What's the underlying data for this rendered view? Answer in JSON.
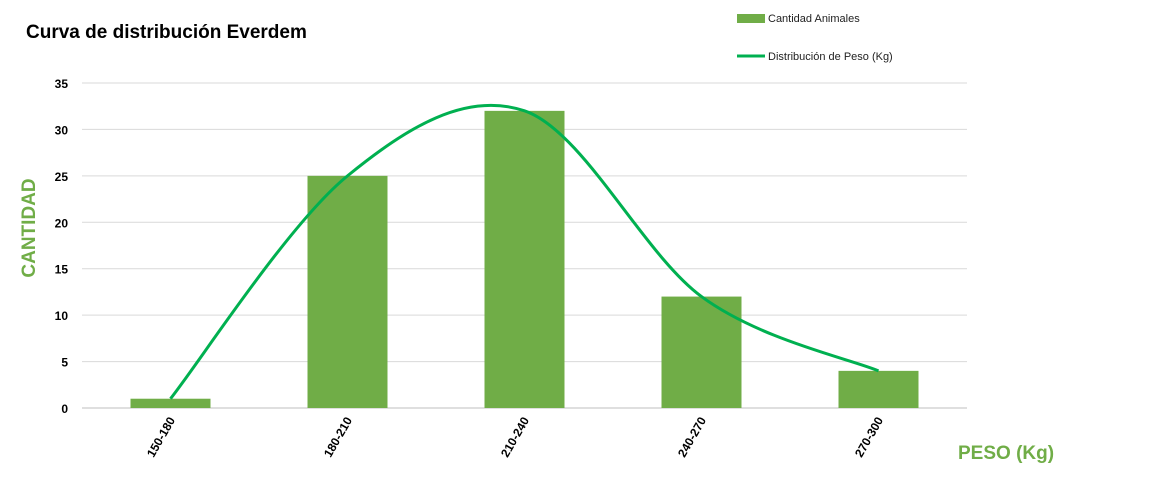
{
  "chart_data": {
    "type": "bar",
    "title": "Curva de distribución Everdem",
    "xlabel": "PESO (Kg)",
    "ylabel": "CANTIDAD",
    "categories": [
      "150-180",
      "180-210",
      "210-240",
      "240-270",
      "270-300"
    ],
    "series": [
      {
        "name": "Cantidad Animales",
        "type": "bar",
        "values": [
          1,
          25,
          32,
          12,
          4
        ],
        "color": "#70AD47"
      },
      {
        "name": "Distribución de Peso (Kg)",
        "type": "line",
        "smooth": true,
        "values": [
          1,
          25,
          32,
          12,
          4
        ],
        "color": "#00B050"
      }
    ],
    "yticks": [
      0,
      5,
      10,
      15,
      20,
      25,
      30,
      35
    ],
    "ylim": [
      0,
      35
    ],
    "grid": true,
    "legend_position": "top-right",
    "colors": {
      "bar": "#70AD47",
      "line": "#00B050",
      "axis_title": "#70AD47",
      "grid": "#D9D9D9"
    }
  }
}
